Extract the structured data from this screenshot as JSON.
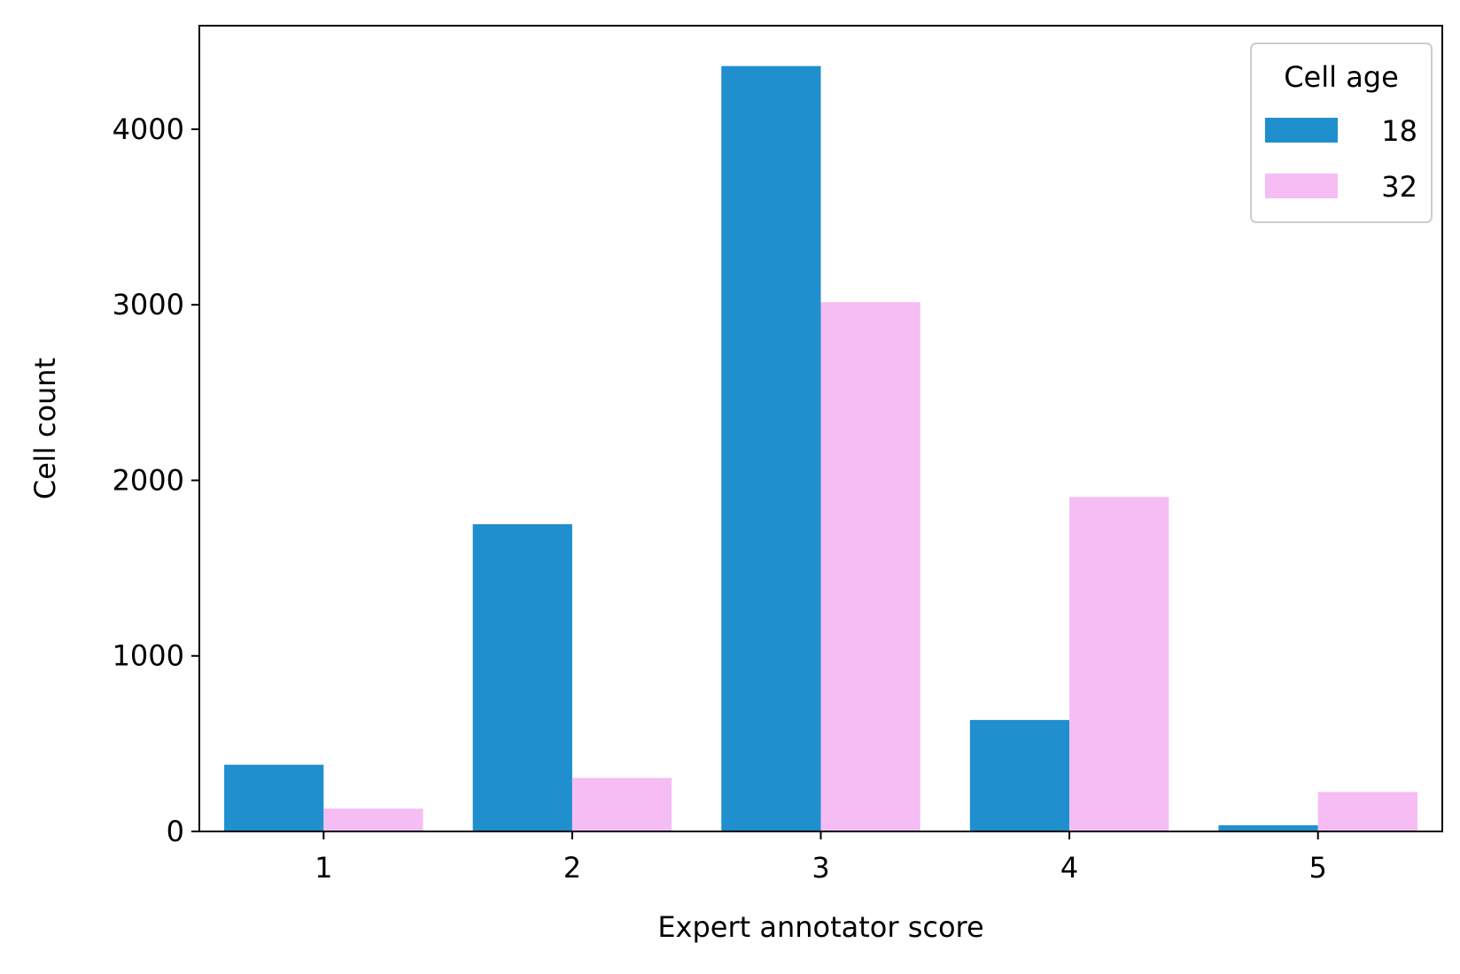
{
  "chart_data": {
    "type": "bar",
    "title": "",
    "xlabel": "Expert annotator score",
    "ylabel": "Cell count",
    "categories": [
      "1",
      "2",
      "3",
      "4",
      "5"
    ],
    "series": [
      {
        "name": "18",
        "color": "#1f8fce",
        "values": [
          380,
          1750,
          4360,
          635,
          35
        ]
      },
      {
        "name": "32",
        "color": "#f5bdf3",
        "values": [
          130,
          305,
          3015,
          1905,
          225
        ]
      }
    ],
    "ylim": [
      0,
      4590
    ],
    "yticks": [
      0,
      1000,
      2000,
      3000,
      4000
    ],
    "grid": false,
    "legend": {
      "title": "Cell age",
      "placement": "top-right"
    }
  }
}
